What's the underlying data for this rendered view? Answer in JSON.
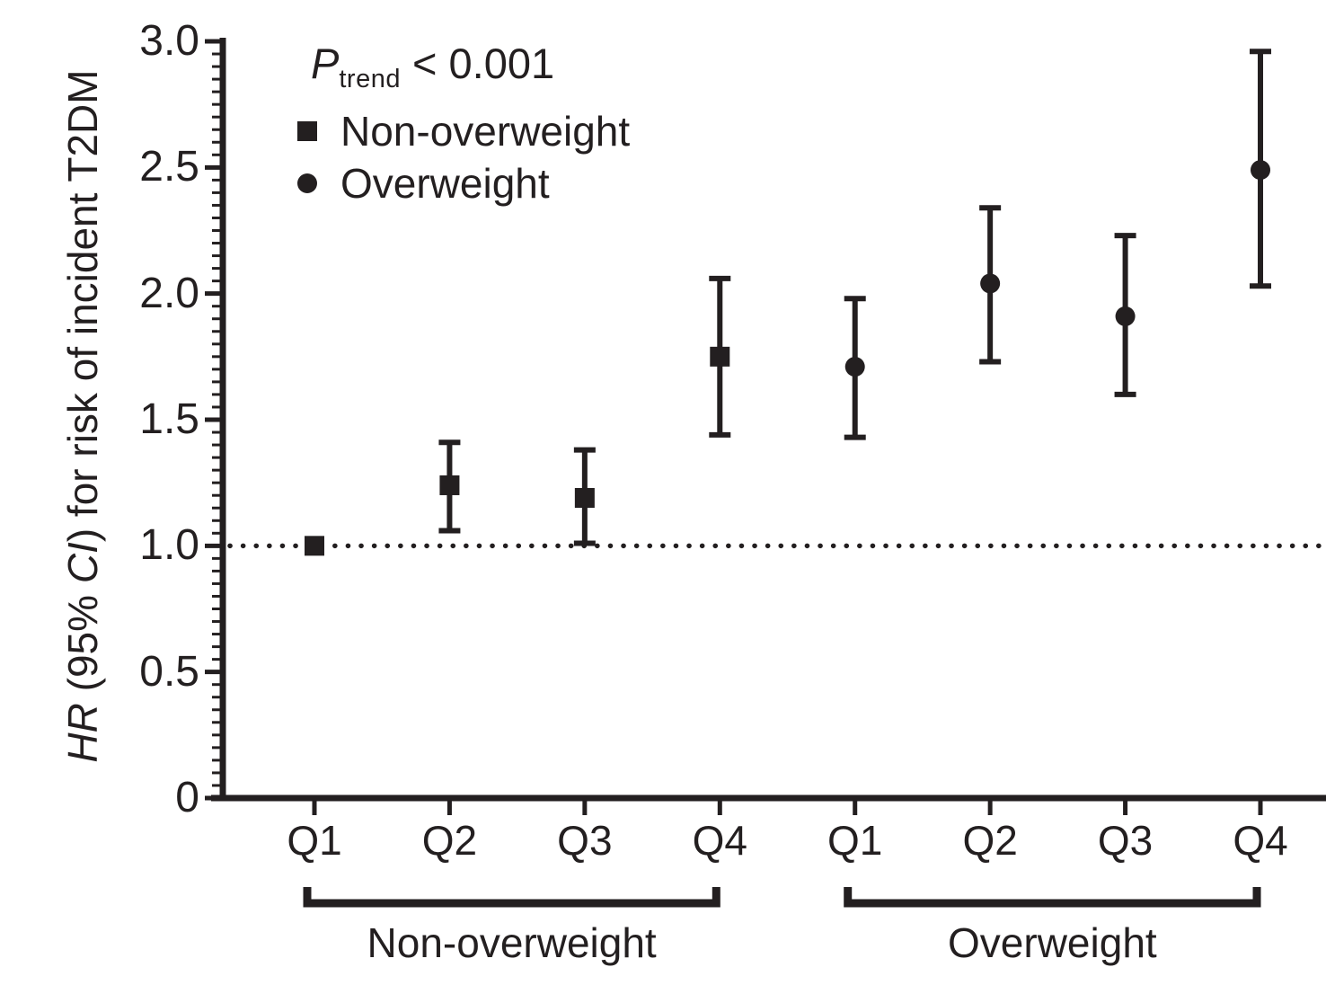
{
  "chart_data": {
    "type": "scatter",
    "subtype": "point-estimates-with-95ci",
    "ylabel_parts": [
      {
        "text": "HR",
        "italic": true
      },
      {
        "text": " (95% ",
        "italic": false
      },
      {
        "text": "CI",
        "italic": true
      },
      {
        "text": ") for risk of incident T2DM",
        "italic": false
      }
    ],
    "annotation": {
      "p_main": "P",
      "p_sub": "trend",
      "p_rest": " < 0.001"
    },
    "legend": [
      {
        "marker": "square",
        "label": "Non-overweight"
      },
      {
        "marker": "circle",
        "label": "Overweight"
      }
    ],
    "legend_position": "top-left-inside",
    "ylim": [
      0,
      3.0
    ],
    "y_major_ticks": [
      {
        "value": 0,
        "label": "0"
      },
      {
        "value": 0.5,
        "label": "0.5"
      },
      {
        "value": 1.0,
        "label": "1.0"
      },
      {
        "value": 1.5,
        "label": "1.5"
      },
      {
        "value": 2.0,
        "label": "2.0"
      },
      {
        "value": 2.5,
        "label": "2.5"
      },
      {
        "value": 3.0,
        "label": "3.0"
      }
    ],
    "y_minor_step": 0.05,
    "reference_line_y": 1.0,
    "reference_line_style": "dotted",
    "grid": false,
    "categories": [
      "Q1",
      "Q2",
      "Q3",
      "Q4",
      "Q1",
      "Q2",
      "Q3",
      "Q4"
    ],
    "groups": [
      {
        "label": "Non-overweight",
        "span": [
          0,
          3
        ]
      },
      {
        "label": "Overweight",
        "span": [
          4,
          7
        ]
      }
    ],
    "series": [
      {
        "name": "Non-overweight",
        "marker": "square",
        "points": [
          {
            "x": 0,
            "hr": 1.0,
            "lo": null,
            "hi": null
          },
          {
            "x": 1,
            "hr": 1.24,
            "lo": 1.06,
            "hi": 1.41
          },
          {
            "x": 2,
            "hr": 1.19,
            "lo": 1.01,
            "hi": 1.38
          },
          {
            "x": 3,
            "hr": 1.75,
            "lo": 1.44,
            "hi": 2.06
          }
        ]
      },
      {
        "name": "Overweight",
        "marker": "circle",
        "points": [
          {
            "x": 4,
            "hr": 1.71,
            "lo": 1.43,
            "hi": 1.98
          },
          {
            "x": 5,
            "hr": 2.04,
            "lo": 1.73,
            "hi": 2.34
          },
          {
            "x": 6,
            "hr": 1.91,
            "lo": 1.6,
            "hi": 2.23
          },
          {
            "x": 7,
            "hr": 2.49,
            "lo": 2.03,
            "hi": 2.96
          }
        ]
      }
    ],
    "colors": {
      "ink": "#231f20",
      "background": "#ffffff"
    }
  }
}
